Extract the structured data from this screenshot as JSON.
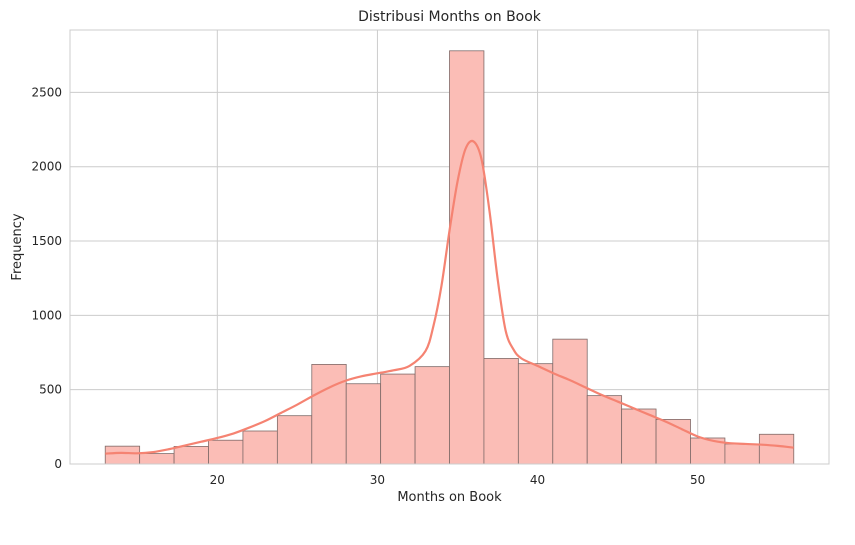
{
  "chart_data": {
    "type": "bar",
    "title": "Distribusi Months on Book",
    "xlabel": "Months on Book",
    "ylabel": "Frequency",
    "xlim": [
      10.8,
      58.2
    ],
    "ylim": [
      0,
      2920
    ],
    "xticks": [
      20,
      30,
      40,
      50
    ],
    "yticks": [
      0,
      500,
      1000,
      1500,
      2000,
      2500
    ],
    "grid": true,
    "bar_color": "#fa8072",
    "bar_fill": "#fbbdb6",
    "bar_edge": "#7f6a68",
    "kde_color": "#f58372",
    "bins": [
      {
        "x0": 13.0,
        "x1": 15.15,
        "value": 120
      },
      {
        "x0": 15.15,
        "x1": 17.3,
        "value": 70
      },
      {
        "x0": 17.3,
        "x1": 19.45,
        "value": 118
      },
      {
        "x0": 19.45,
        "x1": 21.6,
        "value": 160
      },
      {
        "x0": 21.6,
        "x1": 23.75,
        "value": 222
      },
      {
        "x0": 23.75,
        "x1": 25.9,
        "value": 325
      },
      {
        "x0": 25.9,
        "x1": 28.05,
        "value": 670
      },
      {
        "x0": 28.05,
        "x1": 30.2,
        "value": 540
      },
      {
        "x0": 30.2,
        "x1": 32.35,
        "value": 605
      },
      {
        "x0": 32.35,
        "x1": 34.5,
        "value": 655
      },
      {
        "x0": 34.5,
        "x1": 36.65,
        "value": 2780
      },
      {
        "x0": 36.65,
        "x1": 38.8,
        "value": 710
      },
      {
        "x0": 38.8,
        "x1": 40.95,
        "value": 675
      },
      {
        "x0": 40.95,
        "x1": 43.1,
        "value": 840
      },
      {
        "x0": 43.1,
        "x1": 45.25,
        "value": 460
      },
      {
        "x0": 45.25,
        "x1": 47.4,
        "value": 370
      },
      {
        "x0": 47.4,
        "x1": 49.55,
        "value": 300
      },
      {
        "x0": 49.55,
        "x1": 51.7,
        "value": 175
      },
      {
        "x0": 51.7,
        "x1": 53.85,
        "value": 135
      },
      {
        "x0": 53.85,
        "x1": 56.0,
        "value": 200
      }
    ],
    "kde": {
      "x": [
        13,
        14,
        15,
        16,
        17,
        18,
        19,
        20,
        21,
        22,
        23,
        24,
        25,
        26,
        27,
        28,
        29,
        30,
        31,
        32,
        33,
        33.5,
        34,
        34.5,
        35,
        35.5,
        36,
        36.5,
        37,
        37.5,
        38,
        38.5,
        39,
        40,
        41,
        42,
        43,
        44,
        45,
        46,
        47,
        48,
        49,
        50,
        51,
        52,
        53,
        54,
        55,
        56
      ],
      "y": [
        70,
        75,
        72,
        80,
        100,
        125,
        150,
        175,
        205,
        245,
        290,
        345,
        400,
        460,
        515,
        560,
        590,
        610,
        630,
        660,
        760,
        930,
        1200,
        1570,
        1900,
        2120,
        2170,
        2050,
        1700,
        1250,
        900,
        770,
        710,
        660,
        610,
        565,
        515,
        465,
        420,
        375,
        330,
        285,
        235,
        185,
        155,
        140,
        135,
        130,
        122,
        110
      ]
    }
  }
}
